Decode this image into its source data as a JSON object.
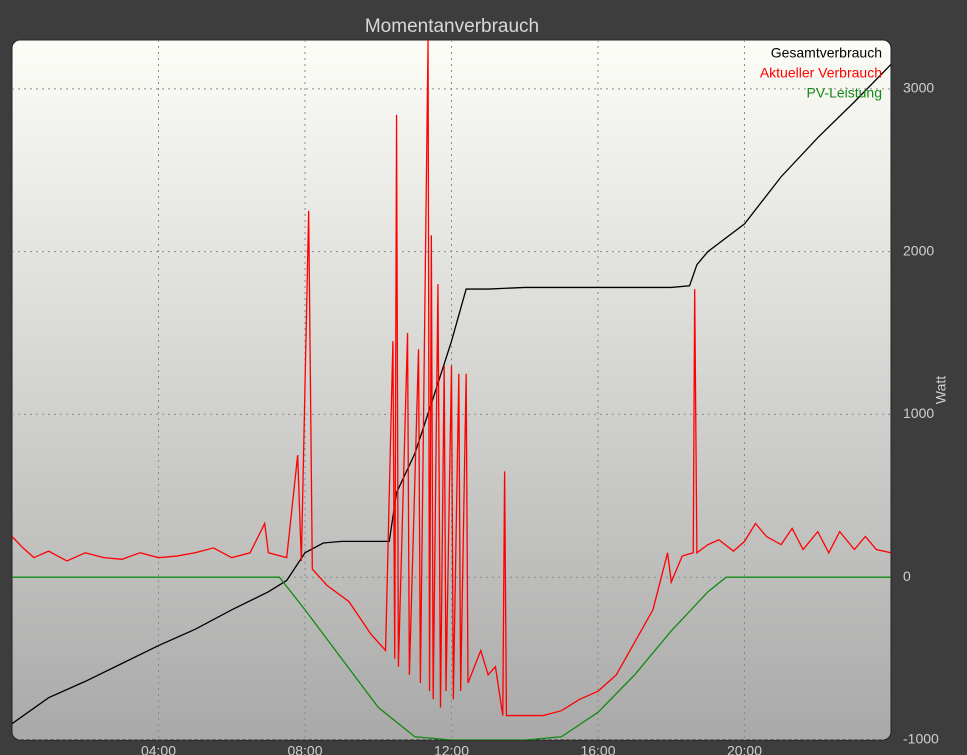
{
  "chart_data": {
    "type": "line",
    "title": "Momentanverbrauch",
    "y_label": "Watt",
    "xlim": [
      0,
      24
    ],
    "ylim": [
      -1000,
      3300
    ],
    "xticks": [
      {
        "value": 4,
        "label": "04:00"
      },
      {
        "value": 8,
        "label": "08:00"
      },
      {
        "value": 12,
        "label": "12:00"
      },
      {
        "value": 16,
        "label": "16:00"
      },
      {
        "value": 20,
        "label": "20:00"
      }
    ],
    "yticks": [
      -1000,
      0,
      1000,
      2000,
      3000
    ],
    "grid": true,
    "legend": "top-right",
    "series": [
      {
        "name": "Gesamtverbrauch",
        "color": "#000000",
        "x": [
          0,
          1,
          2,
          3,
          4,
          5,
          6,
          7,
          7.5,
          8,
          8.5,
          9,
          10,
          10.3,
          10.5,
          11,
          11.5,
          12,
          12.4,
          13,
          14,
          16,
          18,
          18.5,
          18.7,
          19,
          20,
          21,
          22,
          23,
          24
        ],
        "values": [
          -900,
          -740,
          -640,
          -530,
          -420,
          -320,
          -200,
          -90,
          -20,
          150,
          210,
          220,
          220,
          220,
          520,
          760,
          1100,
          1450,
          1770,
          1770,
          1780,
          1780,
          1780,
          1790,
          1920,
          2000,
          2170,
          2460,
          2700,
          2920,
          3150
        ]
      },
      {
        "name": "Aktueller Verbrauch",
        "color": "#ff0000",
        "x": [
          0,
          0.3,
          0.6,
          1,
          1.5,
          2,
          2.5,
          3,
          3.5,
          4,
          4.5,
          5,
          5.5,
          6,
          6.5,
          6.9,
          7,
          7.5,
          7.8,
          7.9,
          8.1,
          8.2,
          8.4,
          8.6,
          9.2,
          9.8,
          10.2,
          10.4,
          10.45,
          10.5,
          10.55,
          10.8,
          10.85,
          11.1,
          11.15,
          11.36,
          11.4,
          11.45,
          11.5,
          11.63,
          11.7,
          11.8,
          11.85,
          12,
          12.05,
          12.2,
          12.25,
          12.4,
          12.45,
          12.8,
          13,
          13.2,
          13.4,
          13.45,
          13.5,
          14,
          14.5,
          15,
          15.5,
          16,
          16.5,
          17,
          17.5,
          17.9,
          18,
          18.3,
          18.6,
          18.64,
          18.7,
          19,
          19.3,
          19.7,
          20,
          20.3,
          20.6,
          21,
          21.3,
          21.6,
          22,
          22.3,
          22.6,
          23,
          23.3,
          23.6,
          24
        ],
        "values": [
          250,
          180,
          120,
          160,
          100,
          150,
          120,
          110,
          150,
          120,
          130,
          150,
          180,
          120,
          150,
          330,
          150,
          120,
          750,
          100,
          2250,
          50,
          0,
          -50,
          -150,
          -350,
          -450,
          1450,
          -500,
          2840,
          -550,
          1500,
          -600,
          1400,
          -650,
          3300,
          -700,
          2100,
          -750,
          1800,
          -800,
          1300,
          -700,
          1300,
          -750,
          1250,
          -700,
          1250,
          -650,
          -450,
          -600,
          -550,
          -850,
          650,
          -850,
          -850,
          -850,
          -820,
          -750,
          -700,
          -600,
          -400,
          -200,
          150,
          -30,
          130,
          150,
          1770,
          150,
          200,
          230,
          160,
          220,
          330,
          250,
          200,
          300,
          170,
          280,
          150,
          280,
          170,
          250,
          170,
          150
        ]
      },
      {
        "name": "PV-Leistung",
        "color": "#138a13",
        "x": [
          0,
          7.3,
          8,
          9,
          10,
          11,
          12,
          13,
          14,
          15,
          16,
          17,
          18,
          19,
          19.5,
          24
        ],
        "values": [
          0,
          0,
          -200,
          -500,
          -800,
          -980,
          -1000,
          -1000,
          -1000,
          -980,
          -830,
          -600,
          -330,
          -90,
          0,
          0
        ]
      }
    ]
  }
}
